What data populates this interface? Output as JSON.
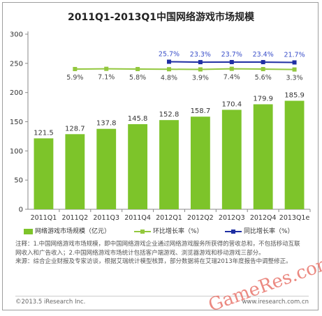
{
  "chart_data": {
    "type": "bar",
    "title": "2011Q1-2013Q1中国网络游戏市场规模",
    "categories": [
      "2011Q1",
      "2011Q2",
      "2011Q3",
      "2011Q4",
      "2012Q1",
      "2012Q2",
      "2012Q3",
      "2012Q4",
      "2013Q1e"
    ],
    "ylim": [
      0,
      300
    ],
    "yticks": [
      0,
      50,
      100,
      150,
      200,
      250,
      300
    ],
    "grid": false,
    "legend_position": "bottom",
    "series": [
      {
        "name": "网络游戏市场规模（亿元）",
        "kind": "bar",
        "color": "#7dc42a",
        "values": [
          121.5,
          128.7,
          137.8,
          145.8,
          152.8,
          158.7,
          170.4,
          179.9,
          185.9
        ],
        "labels": [
          "121.5",
          "128.7",
          "137.8",
          "145.8",
          "152.8",
          "158.7",
          "170.4",
          "179.9",
          "185.9"
        ]
      },
      {
        "name": "环比增长率（%）",
        "kind": "line",
        "color": "#93c83e",
        "values": [
          null,
          5.9,
          7.1,
          5.8,
          4.8,
          3.9,
          7.4,
          5.6,
          3.3
        ],
        "labels": [
          "",
          "5.9%",
          "7.1%",
          "5.8%",
          "4.8%",
          "3.9%",
          "7.4%",
          "5.6%",
          "3.3%"
        ]
      },
      {
        "name": "同比增长率（%）",
        "kind": "line",
        "color": "#1f2fa3",
        "values": [
          null,
          null,
          null,
          null,
          25.7,
          23.3,
          23.7,
          23.4,
          21.7
        ],
        "labels": [
          "",
          "",
          "",
          "",
          "25.7%",
          "23.3%",
          "23.7%",
          "23.4%",
          "21.7%"
        ]
      }
    ]
  },
  "notes": [
    "注释：1.中国网络游戏市场规模，即中国网络游戏企业通过网络游戏服务所获得的营收总和，不包括移动互联网收入和广告收入；2.中国网络游戏市场统计包括客户端游戏、浏览器游戏和移动游戏三部分。",
    "来源：综合企业财报及专家访谈，根据艾瑞统计模型核算，部分数据将在艾瑞2013年度报告中调整修正。"
  ],
  "footer": {
    "left": "©2013.5 iResearch Inc.",
    "right": "www.iresearch.com.cn"
  },
  "watermark": "GameRes.com"
}
